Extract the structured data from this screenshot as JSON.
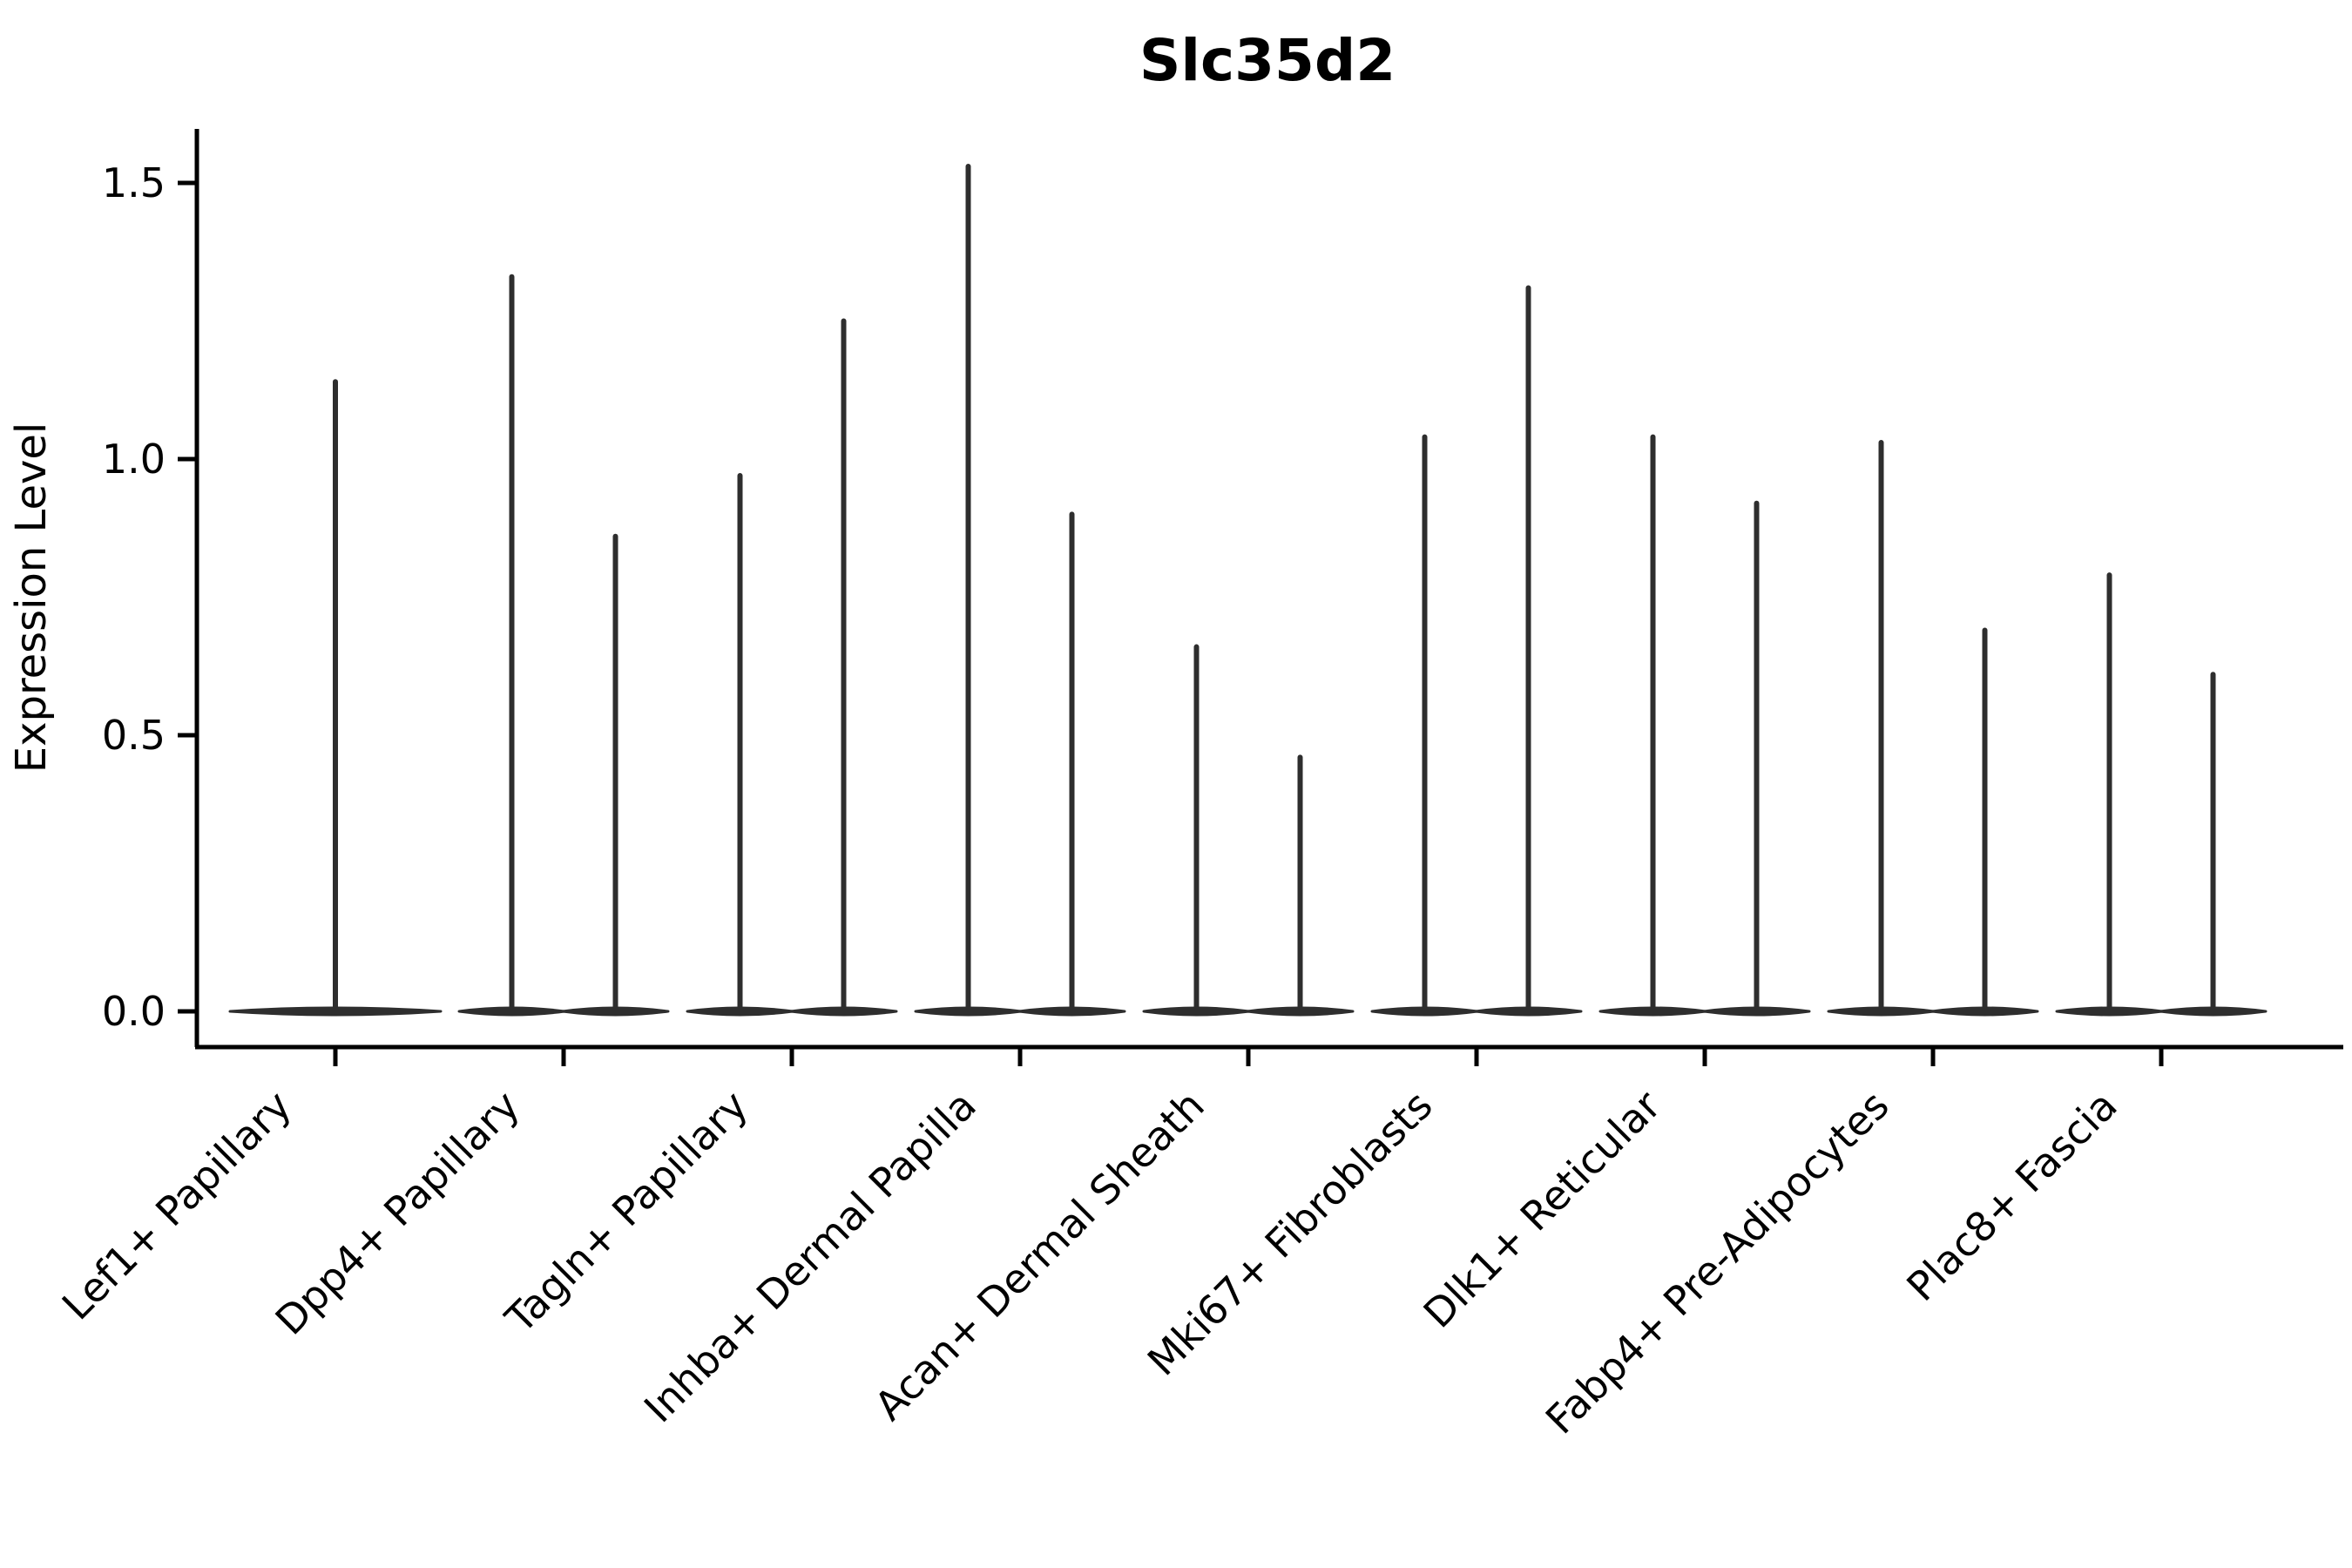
{
  "chart_data": {
    "type": "violin",
    "title": "Slc35d2",
    "ylabel": "Expression Level",
    "xlabel": "",
    "y_tick_labels": [
      "0.0",
      "0.5",
      "1.0",
      "1.5"
    ],
    "y_tick_values": [
      0.0,
      0.5,
      1.0,
      1.5
    ],
    "ylim": [
      -0.07,
      1.62
    ],
    "grid": false,
    "legend": "none",
    "x_tick_rotation_deg": 45,
    "violin_shape_note": "Each violin has nearly all density at expression 0 (wide flat base) with a thin vertical tail up to its maximum value.",
    "categories": [
      "Lef1+ Papillary",
      "Dpp4+ Papillary",
      "Tagln+ Papillary",
      "Inhba+ Dermal Papilla",
      "Acan+ Dermal Sheath",
      "Mki67+ Fibroblasts",
      "Dlk1+ Reticular",
      "Fabp4+ Pre-Adipocytes",
      "Plac8+ Fascia"
    ],
    "violins": [
      {
        "category": "Lef1+ Papillary",
        "maxima": [
          1.14
        ]
      },
      {
        "category": "Dpp4+ Papillary",
        "maxima": [
          1.33,
          0.86
        ]
      },
      {
        "category": "Tagln+ Papillary",
        "maxima": [
          0.97,
          1.25
        ]
      },
      {
        "category": "Inhba+ Dermal Papilla",
        "maxima": [
          1.53,
          0.9
        ]
      },
      {
        "category": "Acan+ Dermal Sheath",
        "maxima": [
          0.66,
          0.46
        ]
      },
      {
        "category": "Mki67+ Fibroblasts",
        "maxima": [
          1.04,
          1.31
        ]
      },
      {
        "category": "Dlk1+ Reticular",
        "maxima": [
          1.04,
          0.92
        ]
      },
      {
        "category": "Fabp4+ Pre-Adipocytes",
        "maxima": [
          1.03,
          0.69
        ]
      },
      {
        "category": "Plac8+ Fascia",
        "maxima": [
          0.79,
          0.61
        ]
      }
    ],
    "colors": {
      "violin_stroke": "#2e2e2e",
      "axis": "#000000",
      "text": "#000000",
      "background": "#ffffff"
    }
  }
}
